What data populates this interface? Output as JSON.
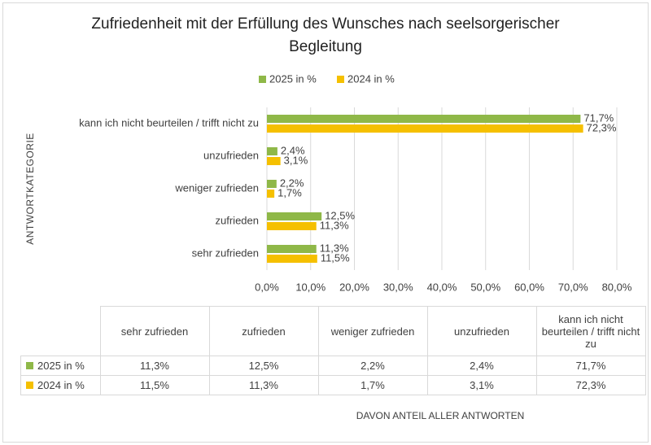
{
  "chart_data": {
    "type": "bar",
    "orientation": "horizontal",
    "title": "Zufriedenheit mit der Erfüllung des Wunsches nach seelsorgerischer Begleitung",
    "ylabel": "ANTWORTKATEGORIE",
    "xlabel": "DAVON ANTEIL ALLER ANTWORTEN",
    "categories": [
      "sehr zufrieden",
      "zufrieden",
      "weniger zufrieden",
      "unzufrieden",
      "kann ich nicht beurteilen / trifft nicht zu"
    ],
    "series": [
      {
        "name": "2025 in %",
        "color": "#8fb848",
        "values": [
          11.3,
          12.5,
          2.2,
          2.4,
          71.7
        ],
        "value_labels": [
          "11,3%",
          "12,5%",
          "2,2%",
          "2,4%",
          "71,7%"
        ]
      },
      {
        "name": "2024 in %",
        "color": "#f5c000",
        "values": [
          11.5,
          11.3,
          1.7,
          3.1,
          72.3
        ],
        "value_labels": [
          "11,5%",
          "11,3%",
          "1,7%",
          "3,1%",
          "72,3%"
        ]
      }
    ],
    "xlim": [
      0,
      80
    ],
    "xticks": [
      {
        "value": 0,
        "label": "0,0%"
      },
      {
        "value": 10,
        "label": "10,0%"
      },
      {
        "value": 20,
        "label": "20,0%"
      },
      {
        "value": 30,
        "label": "30,0%"
      },
      {
        "value": 40,
        "label": "40,0%"
      },
      {
        "value": 50,
        "label": "50,0%"
      },
      {
        "value": 60,
        "label": "60,0%"
      },
      {
        "value": 70,
        "label": "70,0%"
      },
      {
        "value": 80,
        "label": "80,0%"
      }
    ],
    "grid": true,
    "legend": "top"
  }
}
